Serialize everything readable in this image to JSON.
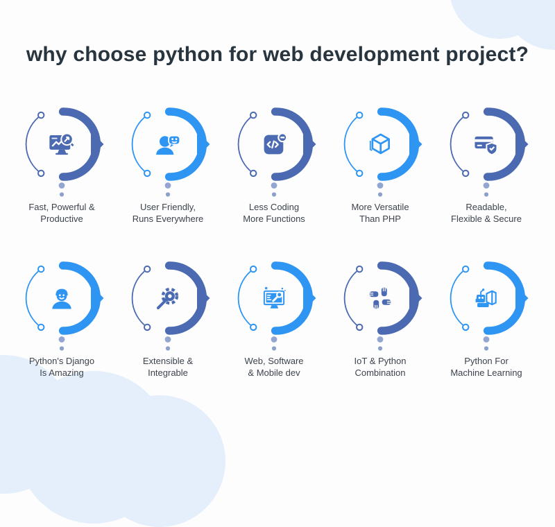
{
  "header": {
    "title": "why choose python for web development project?"
  },
  "theme": {
    "background": "#FDFDFD",
    "cloud_color": "#E4EFFB",
    "title_color": "#28343E",
    "label_color": "#3C434D",
    "dark_blue": "#4B6AB2",
    "bright_blue": "#2E95F3",
    "dot_top_color": "#93A6D2",
    "dot_bottom_color": "#8CA0CC"
  },
  "items": [
    {
      "label_line1": "Fast, Powerful &",
      "label_line2": "Productive",
      "icon": "monitor-chart-icon",
      "variant": "dark"
    },
    {
      "label_line1": "User Friendly,",
      "label_line2": "Runs Everywhere",
      "icon": "user-smiley-icon",
      "variant": "bright"
    },
    {
      "label_line1": "Less Coding",
      "label_line2": "More Functions",
      "icon": "code-file-icon",
      "variant": "dark"
    },
    {
      "label_line1": "More Versatile",
      "label_line2": "Than PHP",
      "icon": "cube-icon",
      "variant": "bright"
    },
    {
      "label_line1": "Readable,",
      "label_line2": "Flexible & Secure",
      "icon": "card-shield-icon",
      "variant": "dark"
    },
    {
      "label_line1": "Python's Django",
      "label_line2": "Is Amazing",
      "icon": "developer-icon",
      "variant": "bright"
    },
    {
      "label_line1": "Extensible &",
      "label_line2": "Integrable",
      "icon": "gear-arrow-icon",
      "variant": "dark"
    },
    {
      "label_line1": "Web, Software",
      "label_line2": "& Mobile dev",
      "icon": "monitor-wrench-icon",
      "variant": "bright"
    },
    {
      "label_line1": "IoT & Python",
      "label_line2": "Combination",
      "icon": "hands-square-icon",
      "variant": "dark"
    },
    {
      "label_line1": "Python For",
      "label_line2": "Machine Learning",
      "icon": "robot-learning-icon",
      "variant": "bright"
    }
  ]
}
